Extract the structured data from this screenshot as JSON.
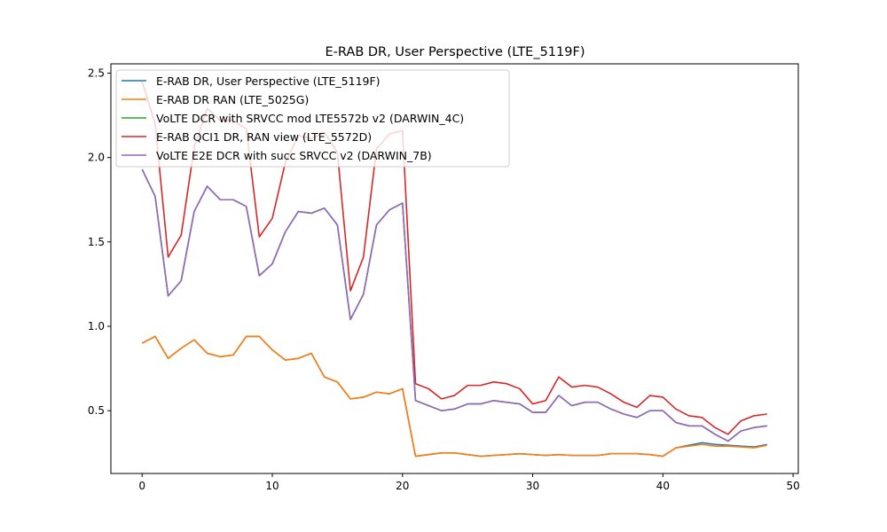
{
  "chart_data": {
    "type": "line",
    "title": "E-RAB DR, User Perspective (LTE_5119F)",
    "xlabel": "",
    "ylabel": "",
    "xlim": [
      -2.4,
      50.4
    ],
    "ylim": [
      0.128,
      2.555
    ],
    "xticks": [
      0,
      10,
      20,
      30,
      40,
      50
    ],
    "yticks": [
      0.5,
      1.0,
      1.5,
      2.0,
      2.5
    ],
    "xtick_labels": [
      "0",
      "10",
      "20",
      "30",
      "40",
      "50"
    ],
    "ytick_labels": [
      "0.5",
      "1.0",
      "1.5",
      "2.0",
      "2.5"
    ],
    "grid": false,
    "legend_position": "upper-left",
    "x": [
      0,
      1,
      2,
      3,
      4,
      5,
      6,
      7,
      8,
      9,
      10,
      11,
      12,
      13,
      14,
      15,
      16,
      17,
      18,
      19,
      20,
      21,
      22,
      23,
      24,
      25,
      26,
      27,
      28,
      29,
      30,
      31,
      32,
      33,
      34,
      35,
      36,
      37,
      38,
      39,
      40,
      41,
      42,
      43,
      44,
      45,
      46,
      47,
      48
    ],
    "series": [
      {
        "name": "E-RAB DR, User Perspective (LTE_5119F)",
        "color": "#1f77b4",
        "values": [
          0.9,
          0.94,
          0.81,
          0.87,
          0.92,
          0.84,
          0.82,
          0.83,
          0.94,
          0.94,
          0.86,
          0.8,
          0.81,
          0.84,
          0.7,
          0.67,
          0.57,
          0.58,
          0.61,
          0.6,
          0.63,
          0.23,
          0.24,
          0.25,
          0.25,
          0.24,
          0.23,
          0.235,
          0.24,
          0.245,
          0.24,
          0.235,
          0.24,
          0.235,
          0.235,
          0.235,
          0.245,
          0.245,
          0.245,
          0.24,
          0.23,
          0.28,
          0.295,
          0.31,
          0.3,
          0.295,
          0.29,
          0.285,
          0.3
        ]
      },
      {
        "name": "E-RAB DR RAN (LTE_5025G)",
        "color": "#ff7f0e",
        "values": [
          0.9,
          0.94,
          0.81,
          0.87,
          0.92,
          0.84,
          0.82,
          0.83,
          0.94,
          0.94,
          0.86,
          0.8,
          0.81,
          0.84,
          0.7,
          0.67,
          0.57,
          0.58,
          0.61,
          0.6,
          0.63,
          0.23,
          0.24,
          0.25,
          0.25,
          0.24,
          0.23,
          0.235,
          0.24,
          0.245,
          0.24,
          0.235,
          0.24,
          0.235,
          0.235,
          0.235,
          0.245,
          0.245,
          0.245,
          0.24,
          0.23,
          0.28,
          0.29,
          0.3,
          0.29,
          0.29,
          0.285,
          0.28,
          0.295
        ]
      },
      {
        "name": "VoLTE DCR with SRVCC mod LTE5572b v2 (DARWIN_4C)",
        "color": "#2ca02c",
        "values": [
          1.93,
          1.77,
          1.18,
          1.27,
          1.68,
          1.83,
          1.75,
          1.75,
          1.71,
          1.3,
          1.37,
          1.56,
          1.68,
          1.67,
          1.7,
          1.6,
          1.04,
          1.19,
          1.6,
          1.69,
          1.73,
          0.56,
          0.53,
          0.5,
          0.51,
          0.54,
          0.54,
          0.56,
          0.55,
          0.54,
          0.49,
          0.49,
          0.59,
          0.53,
          0.55,
          0.55,
          0.51,
          0.48,
          0.46,
          0.5,
          0.5,
          0.43,
          0.41,
          0.41,
          0.36,
          0.32,
          0.38,
          0.4,
          0.41
        ]
      },
      {
        "name": "E-RAB QCI1 DR, RAN view (LTE_5572D)",
        "color": "#d62728",
        "values": [
          2.45,
          2.2,
          1.41,
          1.54,
          2.06,
          2.29,
          2.22,
          2.22,
          2.17,
          1.53,
          1.64,
          1.97,
          2.13,
          2.11,
          2.15,
          2.03,
          1.21,
          1.41,
          2.05,
          2.14,
          2.16,
          0.66,
          0.63,
          0.57,
          0.59,
          0.65,
          0.65,
          0.67,
          0.66,
          0.63,
          0.54,
          0.56,
          0.7,
          0.64,
          0.65,
          0.64,
          0.6,
          0.55,
          0.52,
          0.59,
          0.58,
          0.51,
          0.47,
          0.46,
          0.4,
          0.36,
          0.44,
          0.47,
          0.48
        ]
      },
      {
        "name": "VoLTE E2E DCR with succ SRVCC v2 (DARWIN_7B)",
        "color": "#9467bd",
        "values": [
          1.93,
          1.77,
          1.18,
          1.27,
          1.68,
          1.83,
          1.75,
          1.75,
          1.71,
          1.3,
          1.37,
          1.56,
          1.68,
          1.67,
          1.7,
          1.6,
          1.04,
          1.19,
          1.6,
          1.69,
          1.73,
          0.56,
          0.53,
          0.5,
          0.51,
          0.54,
          0.54,
          0.56,
          0.55,
          0.54,
          0.49,
          0.49,
          0.59,
          0.53,
          0.55,
          0.55,
          0.51,
          0.48,
          0.46,
          0.5,
          0.5,
          0.43,
          0.41,
          0.41,
          0.36,
          0.32,
          0.38,
          0.4,
          0.41
        ]
      }
    ]
  }
}
